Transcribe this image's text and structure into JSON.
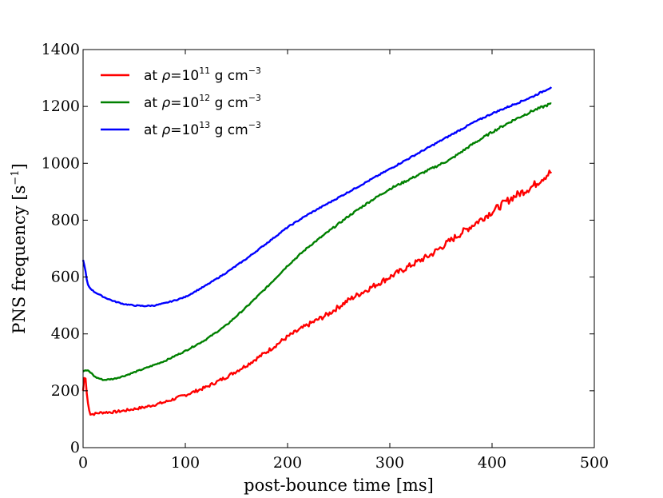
{
  "chart_data": {
    "type": "line",
    "title": "",
    "xlabel": "post-bounce time [ms]",
    "ylabel_main": "PNS frequency [s",
    "ylabel_sup": "−1",
    "ylabel_close": "]",
    "xlim": [
      0,
      500
    ],
    "ylim": [
      0,
      1400
    ],
    "xticks": [
      0,
      100,
      200,
      300,
      400,
      500
    ],
    "yticks": [
      0,
      200,
      400,
      600,
      800,
      1000,
      1200,
      1400
    ],
    "grid": false,
    "legend_position": "top-left",
    "series": [
      {
        "name": "at ρ = 10^11 g cm^-3",
        "legend_prefix": "at ",
        "legend_rho": "ρ",
        "legend_eq": "=10",
        "legend_exp": "11",
        "legend_unit": " g cm",
        "legend_unit_exp": "−3",
        "color": "#ff0000",
        "noise": 3,
        "x": [
          0,
          1,
          2,
          3,
          5,
          7,
          10,
          15,
          20,
          30,
          40,
          60,
          80,
          100,
          120,
          140,
          160,
          180,
          200,
          220,
          240,
          260,
          280,
          300,
          320,
          340,
          360,
          380,
          400,
          420,
          440,
          450,
          458
        ],
        "values": [
          200,
          240,
          265,
          210,
          150,
          118,
          118,
          122,
          124,
          125,
          130,
          142,
          160,
          185,
          212,
          248,
          290,
          338,
          390,
          432,
          470,
          520,
          560,
          600,
          640,
          678,
          730,
          780,
          830,
          880,
          920,
          950,
          970
        ]
      },
      {
        "name": "at ρ = 10^12 g cm^-3",
        "legend_prefix": "at ",
        "legend_rho": "ρ",
        "legend_eq": "=10",
        "legend_exp": "12",
        "legend_unit": " g cm",
        "legend_unit_exp": "−3",
        "color": "#008000",
        "noise": 1.5,
        "x": [
          0,
          2,
          5,
          8,
          12,
          20,
          30,
          40,
          60,
          80,
          100,
          120,
          140,
          160,
          180,
          200,
          220,
          240,
          260,
          280,
          300,
          320,
          340,
          360,
          380,
          400,
          420,
          440,
          458
        ],
        "values": [
          268,
          272,
          270,
          262,
          248,
          238,
          242,
          252,
          278,
          305,
          340,
          380,
          430,
          495,
          565,
          640,
          705,
          760,
          815,
          865,
          910,
          945,
          980,
          1015,
          1065,
          1110,
          1150,
          1185,
          1210
        ]
      },
      {
        "name": "at ρ = 10^13 g cm^-3",
        "legend_prefix": "at ",
        "legend_rho": "ρ",
        "legend_eq": "=10",
        "legend_exp": "13",
        "legend_unit": " g cm",
        "legend_unit_exp": "−3",
        "color": "#0000ff",
        "noise": 1,
        "x": [
          0,
          2,
          4,
          6,
          10,
          20,
          30,
          40,
          50,
          60,
          70,
          80,
          90,
          100,
          120,
          140,
          160,
          180,
          200,
          220,
          240,
          260,
          280,
          300,
          320,
          340,
          360,
          380,
          400,
          420,
          440,
          458
        ],
        "values": [
          660,
          630,
          580,
          565,
          550,
          530,
          515,
          505,
          500,
          498,
          500,
          508,
          518,
          530,
          570,
          615,
          665,
          720,
          775,
          820,
          860,
          900,
          940,
          980,
          1020,
          1060,
          1100,
          1140,
          1175,
          1205,
          1235,
          1268
        ]
      }
    ]
  }
}
